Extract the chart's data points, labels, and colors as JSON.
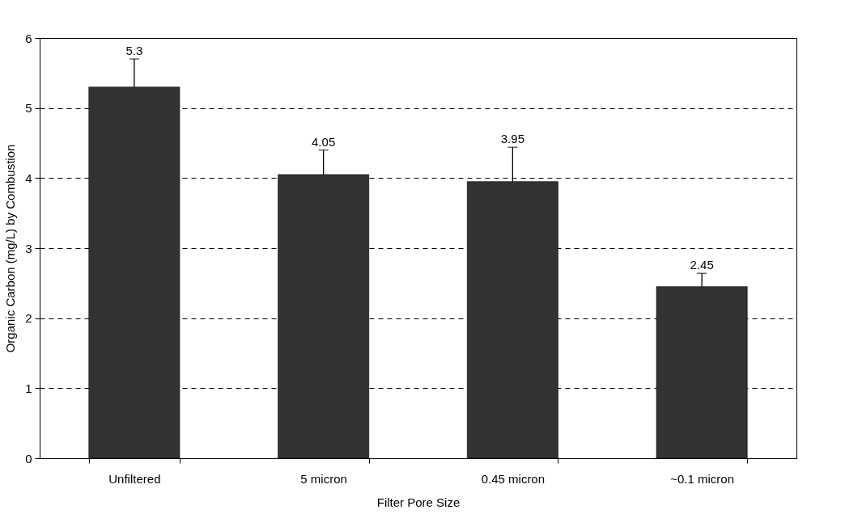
{
  "chart_data": {
    "type": "bar",
    "xlabel": "Filter Pore Size",
    "ylabel": "Organic Carbon (mg/L) by Combustion",
    "categories": [
      "Unfiltered",
      "5 micron",
      "0.45 micron",
      "~0.1 micron"
    ],
    "values": [
      5.3,
      4.05,
      3.95,
      2.45
    ],
    "color": "#333333",
    "errors": [
      [
        5.3,
        5.7
      ],
      [
        4.05,
        4.4
      ],
      [
        3.95,
        4.44
      ],
      [
        2.45,
        2.64
      ]
    ],
    "data_labels": true,
    "ylim": [
      0,
      6
    ],
    "yticks": [
      0,
      1,
      2,
      3,
      4,
      5,
      6
    ],
    "grid": "y"
  }
}
